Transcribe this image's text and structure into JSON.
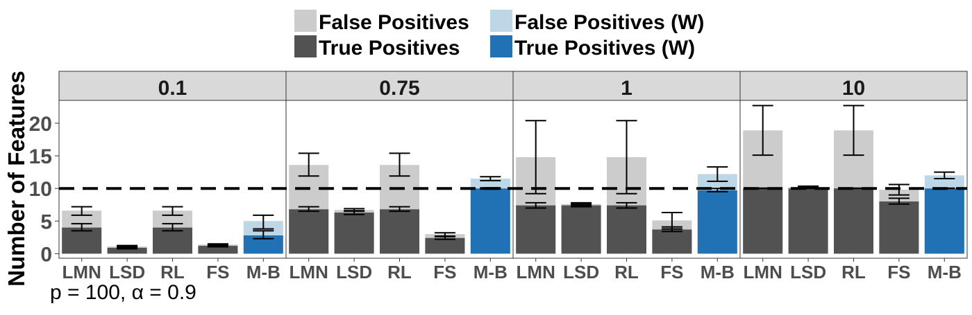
{
  "chart_data": {
    "type": "bar",
    "stacked": true,
    "facets": [
      "0.1",
      "0.75",
      "1",
      "10"
    ],
    "categories": [
      "LMN",
      "LSD",
      "RL",
      "FS",
      "M-B"
    ],
    "ylabel": "Number of Features",
    "ylim": [
      -0.7,
      23.5
    ],
    "yticks": [
      0,
      5,
      10,
      15,
      20
    ],
    "reference_line": 10,
    "footnote": "p = 100, α = 0.9",
    "legend": {
      "position": "top",
      "entries": [
        {
          "label": "False Positives",
          "color": "#cccccc"
        },
        {
          "label": "False Positives (W)",
          "color": "#bdd7e7"
        },
        {
          "label": "True Positives",
          "color": "#525252"
        },
        {
          "label": "True Positives (W)",
          "color": "#2171b5"
        }
      ]
    },
    "weighted_category": "M-B",
    "series": [
      {
        "facet": "0.1",
        "tp": [
          4.0,
          0.9,
          4.0,
          1.2,
          2.8
        ],
        "tp_err": [
          [
            3.5,
            4.6
          ],
          [
            0.75,
            1.05
          ],
          [
            3.5,
            4.6
          ],
          [
            1.05,
            1.35
          ],
          [
            2.3,
            3.5
          ]
        ],
        "total": [
          6.6,
          1.1,
          6.6,
          1.4,
          5.0
        ],
        "total_err": [
          [
            5.9,
            7.2
          ],
          [
            0.95,
            1.25
          ],
          [
            5.9,
            7.2
          ],
          [
            1.2,
            1.5
          ],
          [
            3.8,
            5.9
          ]
        ]
      },
      {
        "facet": "0.75",
        "tp": [
          6.8,
          6.3,
          6.8,
          2.4,
          10.0
        ],
        "tp_err": [
          [
            6.5,
            7.2
          ],
          [
            6.0,
            6.6
          ],
          [
            6.5,
            7.2
          ],
          [
            2.2,
            2.6
          ],
          [
            9.9,
            10.1
          ]
        ],
        "total": [
          13.6,
          6.7,
          13.6,
          3.0,
          11.5
        ],
        "total_err": [
          [
            11.9,
            15.4
          ],
          [
            6.5,
            6.9
          ],
          [
            11.9,
            15.4
          ],
          [
            2.7,
            3.2
          ],
          [
            11.2,
            11.8
          ]
        ]
      },
      {
        "facet": "1",
        "tp": [
          7.4,
          7.4,
          7.4,
          3.7,
          9.7
        ],
        "tp_err": [
          [
            7.0,
            7.8
          ],
          [
            7.2,
            7.6
          ],
          [
            7.0,
            7.8
          ],
          [
            3.4,
            4.1
          ],
          [
            9.5,
            10.0
          ]
        ],
        "total": [
          14.8,
          7.6,
          14.8,
          5.1,
          12.2
        ],
        "total_err": [
          [
            9.2,
            20.4
          ],
          [
            7.4,
            7.8
          ],
          [
            9.2,
            20.4
          ],
          [
            3.8,
            6.3
          ],
          [
            11.1,
            13.3
          ]
        ]
      },
      {
        "facet": "10",
        "tp": [
          10.0,
          10.0,
          10.0,
          8.0,
          10.0
        ],
        "tp_err": [
          [
            10.0,
            10.05
          ],
          [
            10.0,
            10.2
          ],
          [
            10.0,
            10.05
          ],
          [
            7.6,
            8.5
          ],
          [
            10.0,
            10.05
          ]
        ],
        "total": [
          18.9,
          10.2,
          18.9,
          9.8,
          12.0
        ],
        "total_err": [
          [
            15.1,
            22.7
          ],
          [
            10.1,
            10.35
          ],
          [
            15.1,
            22.7
          ],
          [
            9.0,
            10.6
          ],
          [
            11.5,
            12.5
          ]
        ]
      }
    ]
  }
}
